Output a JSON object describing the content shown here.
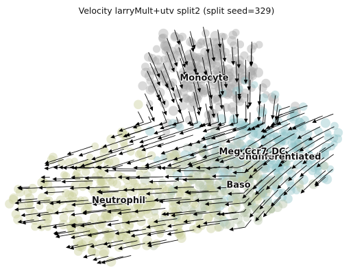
{
  "chart_data": {
    "type": "scatter",
    "title": "Velocity larryMult+utv split2 (split seed=329)",
    "xlabel": "",
    "ylabel": "",
    "grid": false,
    "legend": "none",
    "xlim": [
      0,
      100
    ],
    "ylim": [
      0,
      100
    ],
    "clusters": [
      {
        "name": "Monocyte",
        "color": "#a6a6a6",
        "label_pos": [
          58,
          76
        ],
        "center": [
          58,
          80
        ],
        "spread": [
          13,
          9
        ],
        "count": 260
      },
      {
        "name": "Undifferentiated",
        "color": "#8fc4c9",
        "label_pos": [
          80,
          45
        ],
        "center": [
          80,
          47
        ],
        "spread": [
          13,
          11
        ],
        "count": 260
      },
      {
        "name": "Meg_Ccr7_DC",
        "color": "#b9c7bf",
        "label_pos": [
          72,
          47
        ],
        "center": [
          64,
          45
        ],
        "spread": [
          8,
          6
        ],
        "count": 90
      },
      {
        "name": "Baso",
        "color": "#b6c4a6",
        "label_pos": [
          68,
          34
        ],
        "center": [
          66,
          30
        ],
        "spread": [
          11,
          9
        ],
        "count": 180
      },
      {
        "name": "Neutrophil",
        "color": "#c9cc98",
        "label_pos": [
          33,
          28
        ],
        "center": [
          30,
          26
        ],
        "spread": [
          20,
          14
        ],
        "count": 320
      }
    ]
  }
}
